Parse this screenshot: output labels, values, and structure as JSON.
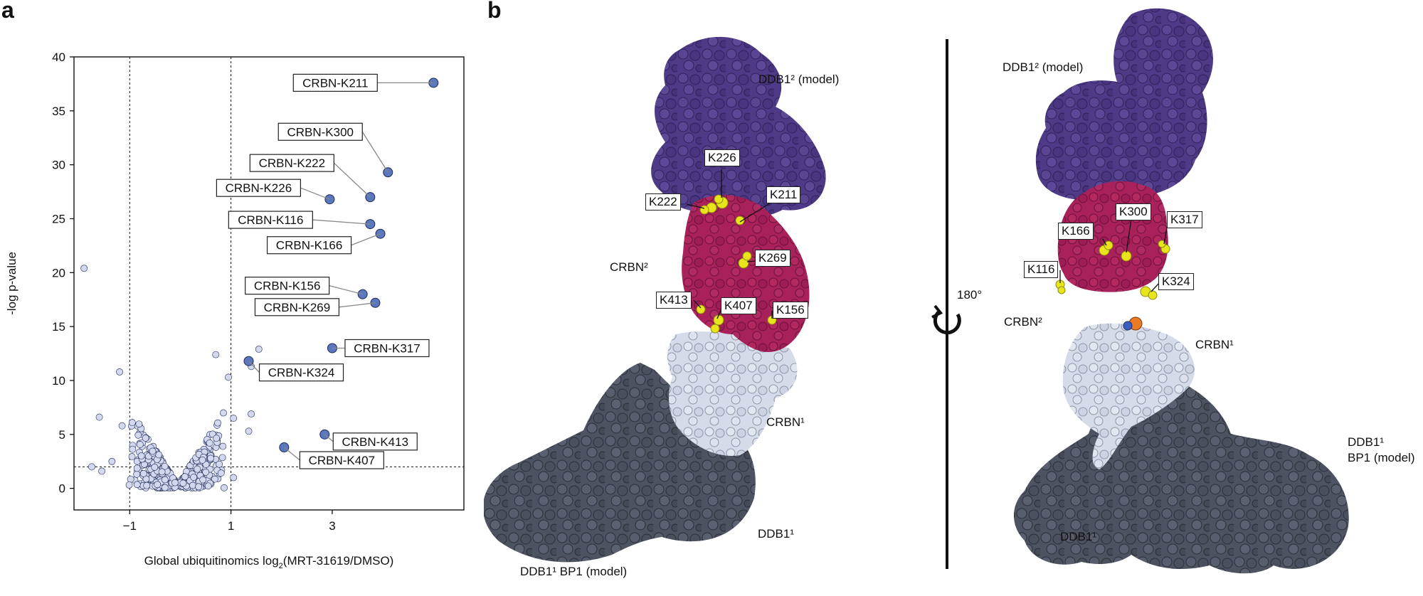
{
  "panel_a": {
    "letter": "a",
    "chart_data": {
      "type": "scatter",
      "title": "",
      "xlabel_prefix": "Global ubiquitinomics log",
      "xlabel_sub": "2",
      "xlabel_suffix": "(MRT-31619/DMSO)",
      "ylabel": "-log p-value",
      "xlim": [
        -2.1,
        5.6
      ],
      "ylim": [
        -2,
        40
      ],
      "x_ticks": [
        -1,
        1,
        3
      ],
      "x_tick_labels": [
        "−1",
        "1",
        "3"
      ],
      "y_ticks": [
        0,
        5,
        10,
        15,
        20,
        25,
        30,
        35,
        40
      ],
      "y_tick_labels": [
        "0",
        "5",
        "10",
        "15",
        "20",
        "25",
        "30",
        "35",
        "40"
      ],
      "thresholds": {
        "x": [
          -1,
          1
        ],
        "y": 2
      },
      "colors": {
        "background_points": "#d3d8ee",
        "highlight_points": "#5b77bd",
        "point_edge": "#1f2b55"
      },
      "highlighted": [
        {
          "label": "CRBN-K211",
          "x": 5.0,
          "y": 37.6
        },
        {
          "label": "CRBN-K300",
          "x": 4.1,
          "y": 29.3
        },
        {
          "label": "CRBN-K222",
          "x": 3.75,
          "y": 27.0
        },
        {
          "label": "CRBN-K226",
          "x": 2.95,
          "y": 26.8
        },
        {
          "label": "CRBN-K116",
          "x": 3.75,
          "y": 24.5
        },
        {
          "label": "CRBN-K166",
          "x": 3.95,
          "y": 23.6
        },
        {
          "label": "CRBN-K156",
          "x": 3.6,
          "y": 18.0
        },
        {
          "label": "CRBN-K269",
          "x": 3.85,
          "y": 17.2
        },
        {
          "label": "CRBN-K317",
          "x": 3.0,
          "y": 13.0
        },
        {
          "label": "CRBN-K324",
          "x": 1.35,
          "y": 11.8
        },
        {
          "label": "CRBN-K413",
          "x": 2.85,
          "y": 5.0
        },
        {
          "label": "CRBN-K407",
          "x": 2.05,
          "y": 3.8
        }
      ],
      "outliers": [
        {
          "x": -1.9,
          "y": 20.4
        },
        {
          "x": -1.2,
          "y": 10.8
        },
        {
          "x": 0.7,
          "y": 12.4
        },
        {
          "x": 0.95,
          "y": 10.3
        },
        {
          "x": 1.55,
          "y": 12.9
        },
        {
          "x": 1.4,
          "y": 11.3
        },
        {
          "x": 1.4,
          "y": 6.9
        },
        {
          "x": 1.35,
          "y": 5.3
        },
        {
          "x": -1.6,
          "y": 6.6
        },
        {
          "x": -1.15,
          "y": 5.8
        },
        {
          "x": -0.95,
          "y": 6.1
        },
        {
          "x": -1.75,
          "y": 2.0
        },
        {
          "x": -1.55,
          "y": 1.6
        },
        {
          "x": 1.05,
          "y": 6.5
        },
        {
          "x": 1.05,
          "y": 1.0
        },
        {
          "x": -1.35,
          "y": 2.5
        },
        {
          "x": 0.85,
          "y": 7.0
        }
      ]
    }
  },
  "panel_b": {
    "letter": "b",
    "rotation_label": "180°",
    "colors": {
      "ddb1_model": "#4e3a86",
      "crbn2": "#a8215a",
      "crbn1": "#d5dbe8",
      "ddb1": "#4d5361",
      "lysine": "#e9e51c",
      "ligand_orange": "#e77b26",
      "ligand_blue": "#3b5fc0"
    },
    "left_view": {
      "labels": {
        "ddb1_2_model": "DDB1² (model)",
        "crbn2": "CRBN²",
        "crbn1": "CRBN¹",
        "ddb1_1": "DDB1¹",
        "ddb1_1_bp1": "DDB1¹ BP1 (model)"
      },
      "residues": [
        "K226",
        "K222",
        "K211",
        "K269",
        "K413",
        "K407",
        "K156"
      ]
    },
    "right_view": {
      "labels": {
        "ddb1_2_model": "DDB1² (model)",
        "crbn2": "CRBN²",
        "crbn1": "CRBN¹",
        "ddb1_1_bp1_line1": "DDB1¹",
        "ddb1_1_bp1_line2": "BP1 (model)",
        "ddb1_1": "DDB1¹"
      },
      "residues": [
        "K166",
        "K300",
        "K317",
        "K116",
        "K324"
      ]
    }
  }
}
